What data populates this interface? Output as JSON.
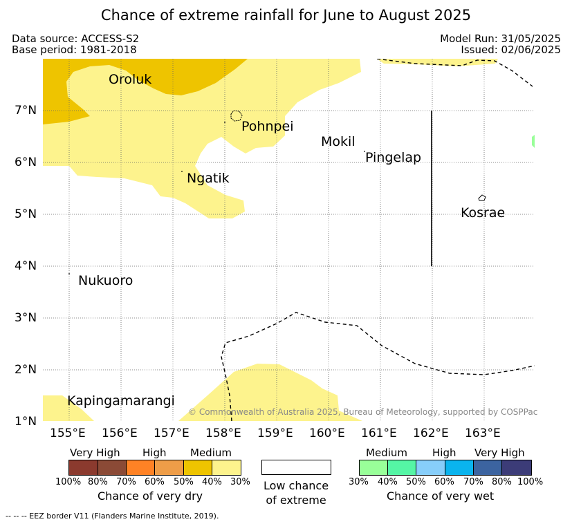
{
  "title": "Chance of extreme rainfall for June to August 2025",
  "meta": {
    "data_source": "Data source: ACCESS-S2",
    "base_period": "Base period: 1981-2018",
    "model_run": "Model Run: 31/05/2025",
    "issued": "Issued: 02/06/2025"
  },
  "map": {
    "lon_ticks": [
      "155°E",
      "156°E",
      "157°E",
      "158°E",
      "159°E",
      "160°E",
      "161°E",
      "162°E",
      "163°E"
    ],
    "lat_ticks": [
      "7°N",
      "6°N",
      "5°N",
      "4°N",
      "3°N",
      "2°N",
      "1°N"
    ],
    "places": [
      "Oroluk",
      "Pohnpei",
      "Mokil",
      "Pingelap",
      "Ngatik",
      "Kosrae",
      "Nukuoro",
      "Kapingamarangi"
    ],
    "copyright": "© Commonwealth of Australia 2025, Bureau of Meteorology, supported by COSPPac",
    "colors": {
      "dry_30_40": "#fdf38d",
      "dry_40_50": "#eec400",
      "wet_30_40": "#99ff99"
    }
  },
  "legend": {
    "dry": {
      "categories": [
        "Very High",
        "High",
        "Medium"
      ],
      "ticks": [
        "100%",
        "80%",
        "70%",
        "60%",
        "50%",
        "40%",
        "30%"
      ],
      "colors": [
        "#8b3a2e",
        "#8b4a36",
        "#ff8225",
        "#ee9d48",
        "#eec400",
        "#fdf38d"
      ],
      "label": "Chance of very dry"
    },
    "neutral": {
      "line1": "Low chance",
      "line2": "of extreme"
    },
    "wet": {
      "categories": [
        "Medium",
        "High",
        "Very High"
      ],
      "ticks": [
        "30%",
        "40%",
        "50%",
        "60%",
        "70%",
        "80%",
        "100%"
      ],
      "colors": [
        "#99ff99",
        "#55f5a5",
        "#87cefa",
        "#0ab4ee",
        "#3c64a0",
        "#3c3c78"
      ],
      "label": "Chance of very wet"
    }
  },
  "footer": "--  --  -- EEZ border V11 (Flanders Marine Institute, 2019)."
}
